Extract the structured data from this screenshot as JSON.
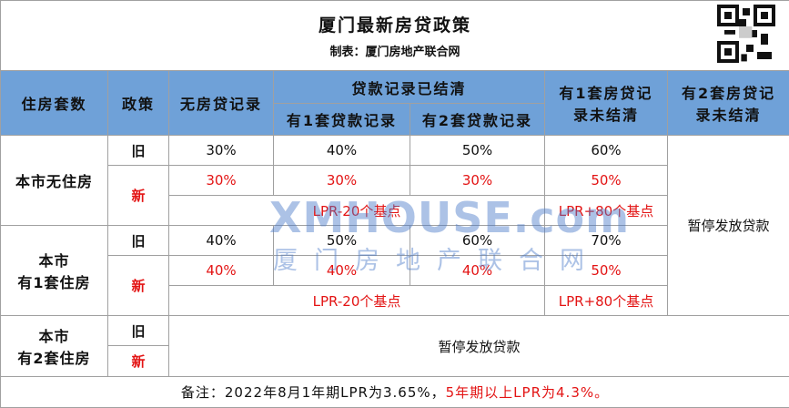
{
  "header": {
    "title": "厦门最新房贷政策",
    "subtitle": "制表：厦门房地产联合网"
  },
  "table": {
    "columns": {
      "housing_count": "住房套数",
      "policy": "政策",
      "no_loan": "无房贷记录",
      "loans_settled": "贷款记录已结清",
      "one_loan": "有1套贷款记录",
      "two_loans": "有2套贷款记录",
      "one_unsettled": "有1套房贷记录未结清",
      "two_unsettled": "有2套房贷记录未结清"
    },
    "groups": [
      {
        "label": [
          "本市无住房"
        ],
        "old": {
          "policy": "旧",
          "values": [
            "30%",
            "40%",
            "50%",
            "60%"
          ]
        },
        "new": {
          "policy": "新",
          "values": [
            "30%",
            "30%",
            "30%",
            "50%"
          ],
          "rate": "LPR-20个基点",
          "rate_unsettled": "LPR+80个基点"
        }
      },
      {
        "label": [
          "本市",
          "有1套住房"
        ],
        "old": {
          "policy": "旧",
          "values": [
            "40%",
            "50%",
            "60%",
            "70%"
          ]
        },
        "new": {
          "policy": "新",
          "values": [
            "40%",
            "40%",
            "40%",
            "50%"
          ],
          "rate": "LPR-20个基点",
          "rate_unsettled": "LPR+80个基点"
        }
      },
      {
        "label": [
          "本市",
          "有2套住房"
        ],
        "old": {
          "policy": "旧"
        },
        "new": {
          "policy": "新"
        },
        "text": "暂停发放贷款"
      }
    ],
    "two_unsettled_text": "暂停发放贷款"
  },
  "watermark": {
    "brand": "XMHOUSE.com",
    "name": "厦门房地产联合网"
  },
  "footnote": {
    "text": "备注：2022年8月1年期LPR为3.65%，",
    "highlight": "5年期以上LPR为4.3%。"
  }
}
